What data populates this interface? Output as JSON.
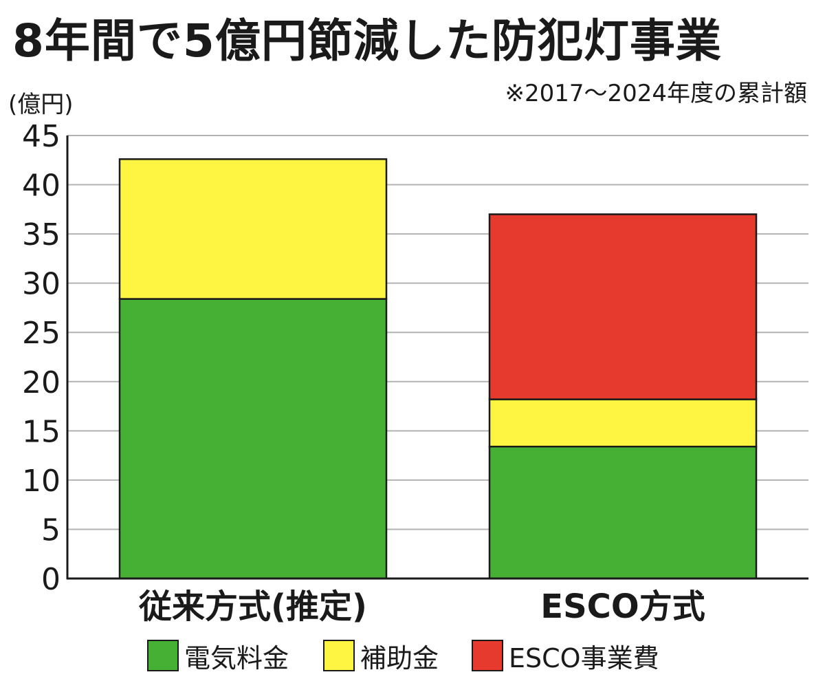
{
  "chart_data": {
    "type": "bar",
    "stacked": true,
    "title": "8年間で5億円節減した防犯灯事業",
    "subtitle": "※2017〜2024年度の累計額",
    "ylabel": "(億円)",
    "ylim": [
      0,
      45
    ],
    "yticks": [
      0,
      5,
      10,
      15,
      20,
      25,
      30,
      35,
      40,
      45
    ],
    "grid": true,
    "legend_position": "bottom",
    "categories": [
      "従来方式(推定)",
      "ESCO方式"
    ],
    "series": [
      {
        "name": "電気料金",
        "color": "#46b035",
        "values": [
          28.4,
          13.4
        ]
      },
      {
        "name": "補助金",
        "color": "#fef442",
        "values": [
          14.2,
          4.8
        ]
      },
      {
        "name": "ESCO事業費",
        "color": "#e63a2e",
        "values": [
          0,
          18.8
        ]
      }
    ]
  }
}
